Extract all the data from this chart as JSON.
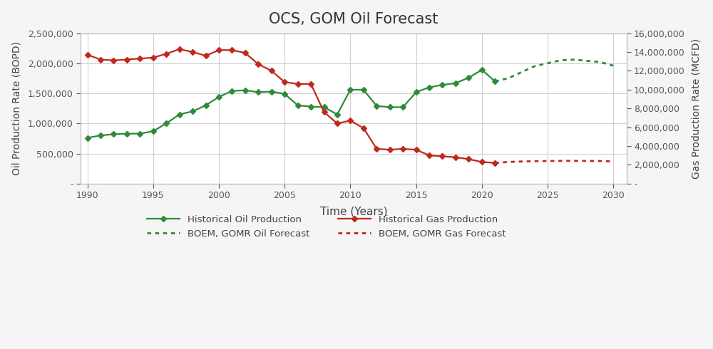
{
  "title": "OCS, GOM Oil Forecast",
  "xlabel": "Time (Years)",
  "ylabel_left": "Oil Production Rate (BOPD)",
  "ylabel_right": "Gas Production Rate (MCFD)",
  "oil_hist_years": [
    1990,
    1991,
    1992,
    1993,
    1994,
    1995,
    1996,
    1997,
    1998,
    1999,
    2000,
    2001,
    2002,
    2003,
    2004,
    2005,
    2006,
    2007,
    2008,
    2009,
    2010,
    2011,
    2012,
    2013,
    2014,
    2015,
    2016,
    2017,
    2018,
    2019,
    2020,
    2021
  ],
  "oil_hist_values": [
    760000,
    800000,
    820000,
    830000,
    830000,
    870000,
    1000000,
    1150000,
    1200000,
    1300000,
    1440000,
    1540000,
    1550000,
    1520000,
    1530000,
    1490000,
    1300000,
    1280000,
    1270000,
    1150000,
    1560000,
    1560000,
    1290000,
    1270000,
    1270000,
    1520000,
    1600000,
    1640000,
    1670000,
    1760000,
    1890000,
    1700000
  ],
  "oil_fcst_years": [
    2021,
    2022,
    2023,
    2024,
    2025,
    2026,
    2027,
    2028,
    2029,
    2030
  ],
  "oil_fcst_values": [
    1700000,
    1750000,
    1850000,
    1950000,
    2000000,
    2050000,
    2060000,
    2040000,
    2020000,
    1960000
  ],
  "gas_hist_years": [
    1990,
    1991,
    1992,
    1993,
    1994,
    1995,
    1996,
    1997,
    1998,
    1999,
    2000,
    2001,
    2002,
    2003,
    2004,
    2005,
    2006,
    2007,
    2008,
    2009,
    2010,
    2011,
    2012,
    2013,
    2014,
    2015,
    2016,
    2017,
    2018,
    2019,
    2020,
    2021
  ],
  "gas_hist_values": [
    13700000,
    13200000,
    13100000,
    13200000,
    13300000,
    13400000,
    13800000,
    14300000,
    14000000,
    13600000,
    14200000,
    14200000,
    13900000,
    12700000,
    12000000,
    10800000,
    10600000,
    10600000,
    7600000,
    6400000,
    6700000,
    5900000,
    3700000,
    3600000,
    3700000,
    3600000,
    3000000,
    2900000,
    2800000,
    2600000,
    2300000,
    2200000
  ],
  "gas_fcst_years": [
    2021,
    2022,
    2023,
    2024,
    2025,
    2026,
    2027,
    2028,
    2029,
    2030
  ],
  "gas_fcst_values": [
    2200000,
    2300000,
    2350000,
    2380000,
    2400000,
    2420000,
    2420000,
    2410000,
    2400000,
    2350000
  ],
  "oil_color": "#2E8B3A",
  "gas_color": "#C0281C",
  "background_color": "#F5F5F5",
  "plot_bg_color": "#FFFFFF",
  "grid_color": "#D0D0D0",
  "ylim_left": [
    0,
    2500000
  ],
  "ylim_right": [
    0,
    16000000
  ],
  "xlim": [
    1989.5,
    2031
  ]
}
